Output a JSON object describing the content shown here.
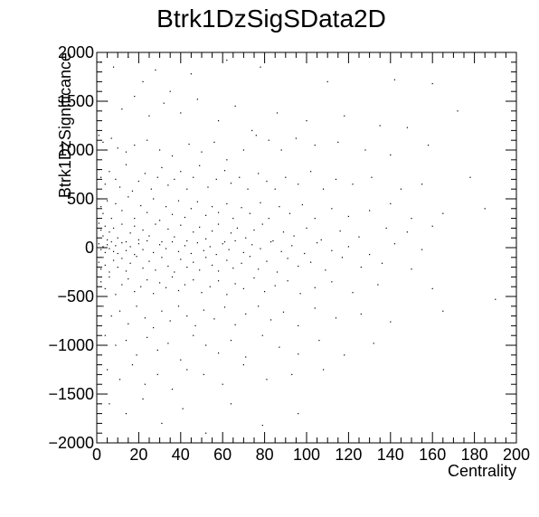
{
  "chart_data": {
    "type": "scatter",
    "title": "Btrk1DzSigSData2D",
    "xlabel": "Centrality",
    "ylabel": "Btrk1DzSignificance",
    "xlim": [
      0,
      200
    ],
    "ylim": [
      -2000,
      2000
    ],
    "x_ticks": [
      0,
      20,
      40,
      60,
      80,
      100,
      120,
      140,
      160,
      180,
      200
    ],
    "y_ticks": [
      -2000,
      -1500,
      -1000,
      -500,
      0,
      500,
      1000,
      1500,
      2000
    ],
    "x_tick_labels": [
      "0",
      "20",
      "40",
      "60",
      "80",
      "100",
      "120",
      "140",
      "160",
      "180",
      "200"
    ],
    "y_tick_labels": [
      "−2000",
      "−1500",
      "−1000",
      "−500",
      "0",
      "500",
      "1000",
      "1500",
      "2000"
    ],
    "grid": false,
    "legend": "none",
    "marker_color": "#000000",
    "points": [
      [
        2,
        1900
      ],
      [
        8,
        1850
      ],
      [
        15,
        1950
      ],
      [
        22,
        1700
      ],
      [
        28,
        1820
      ],
      [
        35,
        1600
      ],
      [
        45,
        1780
      ],
      [
        62,
        1920
      ],
      [
        78,
        1850
      ],
      [
        110,
        1700
      ],
      [
        142,
        1720
      ],
      [
        160,
        1680
      ],
      [
        5,
        1500
      ],
      [
        12,
        1420
      ],
      [
        18,
        1550
      ],
      [
        25,
        1350
      ],
      [
        32,
        1480
      ],
      [
        40,
        1380
      ],
      [
        48,
        1520
      ],
      [
        58,
        1300
      ],
      [
        66,
        1450
      ],
      [
        74,
        1200
      ],
      [
        86,
        1380
      ],
      [
        100,
        1300
      ],
      [
        118,
        1350
      ],
      [
        135,
        1250
      ],
      [
        148,
        1230
      ],
      [
        172,
        1400
      ],
      [
        1,
        1150
      ],
      [
        3,
        1080
      ],
      [
        7,
        1120
      ],
      [
        10,
        1020
      ],
      [
        14,
        980
      ],
      [
        18,
        1050
      ],
      [
        24,
        1100
      ],
      [
        30,
        1000
      ],
      [
        36,
        940
      ],
      [
        44,
        1060
      ],
      [
        50,
        980
      ],
      [
        56,
        1080
      ],
      [
        62,
        900
      ],
      [
        70,
        1000
      ],
      [
        76,
        1150
      ],
      [
        82,
        1100
      ],
      [
        88,
        1000
      ],
      [
        95,
        1120
      ],
      [
        104,
        1050
      ],
      [
        115,
        1080
      ],
      [
        128,
        1000
      ],
      [
        140,
        950
      ],
      [
        158,
        1050
      ],
      [
        1,
        800
      ],
      [
        2,
        720
      ],
      [
        4,
        650
      ],
      [
        6,
        780
      ],
      [
        9,
        700
      ],
      [
        11,
        620
      ],
      [
        14,
        850
      ],
      [
        17,
        580
      ],
      [
        20,
        680
      ],
      [
        23,
        760
      ],
      [
        26,
        600
      ],
      [
        29,
        720
      ],
      [
        31,
        820
      ],
      [
        34,
        640
      ],
      [
        37,
        700
      ],
      [
        40,
        780
      ],
      [
        43,
        600
      ],
      [
        46,
        720
      ],
      [
        49,
        840
      ],
      [
        53,
        620
      ],
      [
        57,
        700
      ],
      [
        61,
        790
      ],
      [
        64,
        660
      ],
      [
        68,
        720
      ],
      [
        72,
        600
      ],
      [
        77,
        760
      ],
      [
        81,
        680
      ],
      [
        85,
        600
      ],
      [
        90,
        720
      ],
      [
        96,
        650
      ],
      [
        102,
        780
      ],
      [
        108,
        600
      ],
      [
        114,
        700
      ],
      [
        122,
        650
      ],
      [
        131,
        720
      ],
      [
        145,
        600
      ],
      [
        155,
        650
      ],
      [
        178,
        720
      ],
      [
        1,
        500
      ],
      [
        2,
        420
      ],
      [
        3,
        350
      ],
      [
        5,
        480
      ],
      [
        7,
        300
      ],
      [
        9,
        450
      ],
      [
        12,
        380
      ],
      [
        15,
        520
      ],
      [
        18,
        300
      ],
      [
        21,
        430
      ],
      [
        24,
        360
      ],
      [
        27,
        500
      ],
      [
        30,
        280
      ],
      [
        33,
        420
      ],
      [
        36,
        340
      ],
      [
        39,
        480
      ],
      [
        42,
        310
      ],
      [
        45,
        400
      ],
      [
        48,
        470
      ],
      [
        52,
        330
      ],
      [
        55,
        420
      ],
      [
        58,
        360
      ],
      [
        62,
        450
      ],
      [
        65,
        300
      ],
      [
        69,
        410
      ],
      [
        73,
        350
      ],
      [
        78,
        460
      ],
      [
        82,
        300
      ],
      [
        87,
        420
      ],
      [
        92,
        350
      ],
      [
        98,
        440
      ],
      [
        104,
        300
      ],
      [
        112,
        400
      ],
      [
        120,
        320
      ],
      [
        130,
        380
      ],
      [
        140,
        450
      ],
      [
        150,
        300
      ],
      [
        165,
        350
      ],
      [
        185,
        400
      ],
      [
        1,
        250
      ],
      [
        2,
        180
      ],
      [
        3,
        120
      ],
      [
        4,
        220
      ],
      [
        5,
        80
      ],
      [
        6,
        160
      ],
      [
        8,
        200
      ],
      [
        10,
        100
      ],
      [
        12,
        240
      ],
      [
        14,
        60
      ],
      [
        16,
        150
      ],
      [
        18,
        220
      ],
      [
        20,
        80
      ],
      [
        22,
        180
      ],
      [
        25,
        120
      ],
      [
        28,
        240
      ],
      [
        31,
        60
      ],
      [
        34,
        190
      ],
      [
        37,
        110
      ],
      [
        40,
        230
      ],
      [
        43,
        70
      ],
      [
        46,
        160
      ],
      [
        49,
        210
      ],
      [
        52,
        90
      ],
      [
        55,
        170
      ],
      [
        58,
        240
      ],
      [
        61,
        60
      ],
      [
        64,
        150
      ],
      [
        67,
        200
      ],
      [
        71,
        100
      ],
      [
        75,
        180
      ],
      [
        79,
        240
      ],
      [
        84,
        70
      ],
      [
        89,
        160
      ],
      [
        94,
        120
      ],
      [
        100,
        200
      ],
      [
        107,
        80
      ],
      [
        116,
        170
      ],
      [
        125,
        110
      ],
      [
        138,
        200
      ],
      [
        148,
        160
      ],
      [
        160,
        220
      ],
      [
        1,
        40
      ],
      [
        2,
        -20
      ],
      [
        3,
        10
      ],
      [
        4,
        -50
      ],
      [
        5,
        30
      ],
      [
        6,
        -10
      ],
      [
        7,
        60
      ],
      [
        8,
        -40
      ],
      [
        9,
        20
      ],
      [
        10,
        -60
      ],
      [
        12,
        50
      ],
      [
        14,
        -30
      ],
      [
        16,
        10
      ],
      [
        18,
        -70
      ],
      [
        20,
        40
      ],
      [
        22,
        -20
      ],
      [
        24,
        70
      ],
      [
        27,
        -50
      ],
      [
        30,
        30
      ],
      [
        33,
        -10
      ],
      [
        36,
        60
      ],
      [
        39,
        -40
      ],
      [
        42,
        20
      ],
      [
        45,
        -60
      ],
      [
        48,
        50
      ],
      [
        51,
        -30
      ],
      [
        54,
        10
      ],
      [
        57,
        -70
      ],
      [
        60,
        40
      ],
      [
        63,
        -20
      ],
      [
        66,
        70
      ],
      [
        70,
        -50
      ],
      [
        74,
        30
      ],
      [
        78,
        -10
      ],
      [
        83,
        60
      ],
      [
        88,
        -40
      ],
      [
        93,
        20
      ],
      [
        99,
        -60
      ],
      [
        105,
        50
      ],
      [
        112,
        -30
      ],
      [
        120,
        10
      ],
      [
        130,
        -70
      ],
      [
        142,
        40
      ],
      [
        155,
        -20
      ],
      [
        1,
        -150
      ],
      [
        2,
        -220
      ],
      [
        3,
        -100
      ],
      [
        4,
        -180
      ],
      [
        6,
        -250
      ],
      [
        8,
        -130
      ],
      [
        10,
        -200
      ],
      [
        12,
        -110
      ],
      [
        14,
        -240
      ],
      [
        16,
        -160
      ],
      [
        19,
        -90
      ],
      [
        22,
        -210
      ],
      [
        25,
        -140
      ],
      [
        28,
        -230
      ],
      [
        31,
        -100
      ],
      [
        34,
        -190
      ],
      [
        37,
        -250
      ],
      [
        40,
        -120
      ],
      [
        43,
        -200
      ],
      [
        46,
        -150
      ],
      [
        49,
        -230
      ],
      [
        52,
        -100
      ],
      [
        55,
        -180
      ],
      [
        58,
        -240
      ],
      [
        62,
        -130
      ],
      [
        65,
        -210
      ],
      [
        69,
        -160
      ],
      [
        73,
        -90
      ],
      [
        77,
        -220
      ],
      [
        81,
        -140
      ],
      [
        86,
        -250
      ],
      [
        91,
        -110
      ],
      [
        96,
        -190
      ],
      [
        102,
        -150
      ],
      [
        109,
        -230
      ],
      [
        117,
        -100
      ],
      [
        126,
        -200
      ],
      [
        136,
        -160
      ],
      [
        150,
        -220
      ],
      [
        2,
        -350
      ],
      [
        4,
        -420
      ],
      [
        6,
        -300
      ],
      [
        9,
        -480
      ],
      [
        12,
        -380
      ],
      [
        15,
        -320
      ],
      [
        18,
        -450
      ],
      [
        21,
        -400
      ],
      [
        24,
        -330
      ],
      [
        27,
        -470
      ],
      [
        30,
        -360
      ],
      [
        33,
        -410
      ],
      [
        36,
        -300
      ],
      [
        39,
        -440
      ],
      [
        42,
        -380
      ],
      [
        46,
        -330
      ],
      [
        50,
        -460
      ],
      [
        54,
        -400
      ],
      [
        58,
        -340
      ],
      [
        62,
        -480
      ],
      [
        66,
        -370
      ],
      [
        70,
        -420
      ],
      [
        75,
        -310
      ],
      [
        80,
        -450
      ],
      [
        85,
        -390
      ],
      [
        91,
        -340
      ],
      [
        97,
        -470
      ],
      [
        104,
        -410
      ],
      [
        112,
        -350
      ],
      [
        122,
        -460
      ],
      [
        134,
        -380
      ],
      [
        160,
        -420
      ],
      [
        190,
        -530
      ],
      [
        3,
        -600
      ],
      [
        7,
        -700
      ],
      [
        11,
        -650
      ],
      [
        15,
        -780
      ],
      [
        19,
        -600
      ],
      [
        23,
        -720
      ],
      [
        27,
        -820
      ],
      [
        31,
        -650
      ],
      [
        35,
        -750
      ],
      [
        39,
        -600
      ],
      [
        43,
        -700
      ],
      [
        47,
        -800
      ],
      [
        51,
        -640
      ],
      [
        56,
        -730
      ],
      [
        61,
        -610
      ],
      [
        66,
        -790
      ],
      [
        71,
        -680
      ],
      [
        77,
        -600
      ],
      [
        83,
        -740
      ],
      [
        89,
        -660
      ],
      [
        96,
        -800
      ],
      [
        104,
        -620
      ],
      [
        114,
        -720
      ],
      [
        126,
        -680
      ],
      [
        140,
        -760
      ],
      [
        165,
        -650
      ],
      [
        4,
        -900
      ],
      [
        9,
        -1000
      ],
      [
        14,
        -950
      ],
      [
        19,
        -1100
      ],
      [
        24,
        -920
      ],
      [
        29,
        -1050
      ],
      [
        34,
        -980
      ],
      [
        40,
        -1150
      ],
      [
        46,
        -900
      ],
      [
        52,
        -1000
      ],
      [
        58,
        -1080
      ],
      [
        64,
        -950
      ],
      [
        71,
        -1120
      ],
      [
        79,
        -900
      ],
      [
        87,
        -1020
      ],
      [
        96,
        -1090
      ],
      [
        106,
        -950
      ],
      [
        118,
        -1100
      ],
      [
        132,
        -980
      ],
      [
        5,
        -1250
      ],
      [
        11,
        -1350
      ],
      [
        17,
        -1200
      ],
      [
        23,
        -1400
      ],
      [
        29,
        -1300
      ],
      [
        36,
        -1450
      ],
      [
        43,
        -1250
      ],
      [
        51,
        -1300
      ],
      [
        60,
        -1400
      ],
      [
        70,
        -1200
      ],
      [
        81,
        -1350
      ],
      [
        93,
        -1300
      ],
      [
        108,
        -1250
      ],
      [
        6,
        -1600
      ],
      [
        14,
        -1700
      ],
      [
        22,
        -1550
      ],
      [
        31,
        -1800
      ],
      [
        41,
        -1650
      ],
      [
        52,
        -1900
      ],
      [
        64,
        -1600
      ],
      [
        79,
        -1820
      ],
      [
        96,
        -1700
      ]
    ]
  }
}
